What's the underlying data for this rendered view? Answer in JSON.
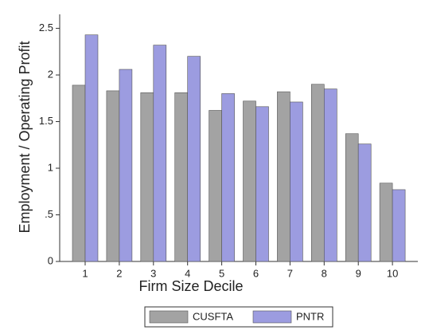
{
  "chart_data": {
    "type": "bar",
    "x_label": "Firm Size Decile",
    "y_label": "Employment / Operating Profit",
    "categories": [
      "1",
      "2",
      "3",
      "4",
      "5",
      "6",
      "7",
      "8",
      "9",
      "10"
    ],
    "series": [
      {
        "name": "CUSFTA",
        "color": "#a3a3a3",
        "values": [
          1.89,
          1.83,
          1.81,
          1.81,
          1.62,
          1.72,
          1.82,
          1.9,
          1.37,
          0.84
        ]
      },
      {
        "name": "PNTR",
        "color": "#9c9ce0",
        "values": [
          2.43,
          2.06,
          2.32,
          2.2,
          1.8,
          1.66,
          1.71,
          1.85,
          1.26,
          0.77
        ]
      }
    ],
    "ylim": [
      0,
      2.65
    ],
    "yticks": [
      0,
      {
        "value": 0.5,
        "label": ".5"
      },
      1,
      1.5,
      2,
      2.5
    ],
    "grid": false,
    "legend": "bottom"
  }
}
